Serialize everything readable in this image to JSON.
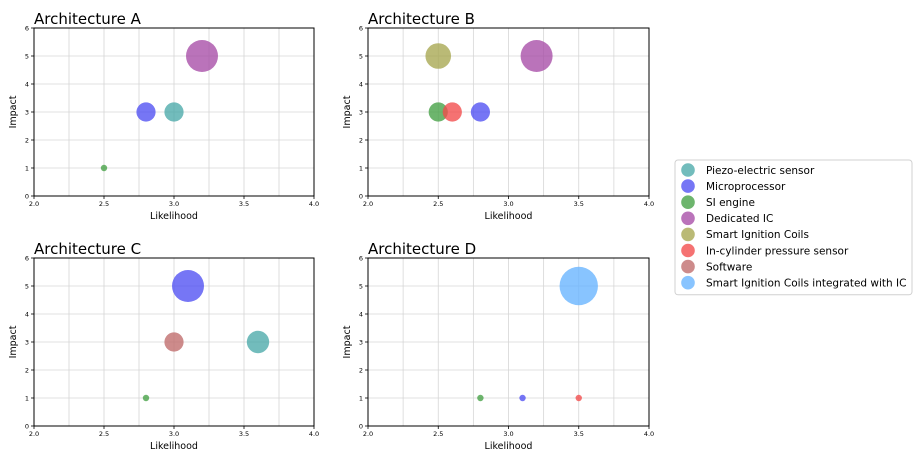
{
  "chart_data": [
    {
      "type": "scatter",
      "title": "Architecture A",
      "xlabel": "Likelihood",
      "ylabel": "Impact",
      "xlim": [
        2.0,
        4.0
      ],
      "ylim": [
        0,
        6
      ],
      "x_ticks": [
        "2.0",
        "2.5",
        "3.0",
        "3.5",
        "4.0"
      ],
      "y_ticks": [
        "0",
        "1",
        "2",
        "3",
        "4",
        "5",
        "6"
      ],
      "grid": true,
      "points": [
        {
          "series": "Piezo-electric sensor",
          "x": 3.0,
          "y": 3,
          "size": 3
        },
        {
          "series": "Microprocessor",
          "x": 2.8,
          "y": 3,
          "size": 3
        },
        {
          "series": "SI engine",
          "x": 2.5,
          "y": 1,
          "size": 1
        },
        {
          "series": "Dedicated IC",
          "x": 3.2,
          "y": 5,
          "size": 5
        }
      ]
    },
    {
      "type": "scatter",
      "title": "Architecture B",
      "xlabel": "Likelihood",
      "ylabel": "Impact",
      "xlim": [
        2.0,
        4.0
      ],
      "ylim": [
        0,
        6
      ],
      "x_ticks": [
        "2.0",
        "2.5",
        "3.0",
        "3.5",
        "4.0"
      ],
      "y_ticks": [
        "0",
        "1",
        "2",
        "3",
        "4",
        "5",
        "6"
      ],
      "grid": true,
      "points": [
        {
          "series": "Smart Ignition Coils",
          "x": 2.5,
          "y": 5,
          "size": 4
        },
        {
          "series": "Dedicated IC",
          "x": 3.2,
          "y": 5,
          "size": 5
        },
        {
          "series": "SI engine",
          "x": 2.5,
          "y": 3,
          "size": 3
        },
        {
          "series": "In-cylinder pressure sensor",
          "x": 2.6,
          "y": 3,
          "size": 3
        },
        {
          "series": "Microprocessor",
          "x": 2.8,
          "y": 3,
          "size": 3
        }
      ]
    },
    {
      "type": "scatter",
      "title": "Architecture C",
      "xlabel": "Likelihood",
      "ylabel": "Impact",
      "xlim": [
        2.0,
        4.0
      ],
      "ylim": [
        0,
        6
      ],
      "x_ticks": [
        "2.0",
        "2.5",
        "3.0",
        "3.5",
        "4.0"
      ],
      "y_ticks": [
        "0",
        "1",
        "2",
        "3",
        "4",
        "5",
        "6"
      ],
      "grid": true,
      "points": [
        {
          "series": "Microprocessor",
          "x": 3.1,
          "y": 5,
          "size": 5
        },
        {
          "series": "Software",
          "x": 3.0,
          "y": 3,
          "size": 3
        },
        {
          "series": "Piezo-electric sensor",
          "x": 3.6,
          "y": 3,
          "size": 3.5
        },
        {
          "series": "SI engine",
          "x": 2.8,
          "y": 1,
          "size": 1
        }
      ]
    },
    {
      "type": "scatter",
      "title": "Architecture D",
      "xlabel": "Likelihood",
      "ylabel": "Impact",
      "xlim": [
        2.0,
        4.0
      ],
      "ylim": [
        0,
        6
      ],
      "x_ticks": [
        "2.0",
        "2.5",
        "3.0",
        "3.5",
        "4.0"
      ],
      "y_ticks": [
        "0",
        "1",
        "2",
        "3",
        "4",
        "5",
        "6"
      ],
      "grid": true,
      "points": [
        {
          "series": "Smart Ignition Coils integrated with IC",
          "x": 3.5,
          "y": 5,
          "size": 6
        },
        {
          "series": "SI engine",
          "x": 2.8,
          "y": 1,
          "size": 1
        },
        {
          "series": "Microprocessor",
          "x": 3.1,
          "y": 1,
          "size": 1
        },
        {
          "series": "In-cylinder pressure sensor",
          "x": 3.5,
          "y": 1,
          "size": 1
        }
      ]
    }
  ],
  "legend": {
    "placement": "right",
    "entries": [
      {
        "label": "Piezo-electric sensor",
        "color": "#4aa9a9"
      },
      {
        "label": "Microprocessor",
        "color": "#5050f2"
      },
      {
        "label": "SI engine",
        "color": "#44a044"
      },
      {
        "label": "Dedicated IC",
        "color": "#a64ca6"
      },
      {
        "label": "Smart Ignition Coils",
        "color": "#a6a650"
      },
      {
        "label": "In-cylinder pressure sensor",
        "color": "#f24a4a"
      },
      {
        "label": "Software",
        "color": "#bf6a6a"
      },
      {
        "label": "Smart Ignition Coils integrated with IC",
        "color": "#66b3ff"
      }
    ]
  }
}
